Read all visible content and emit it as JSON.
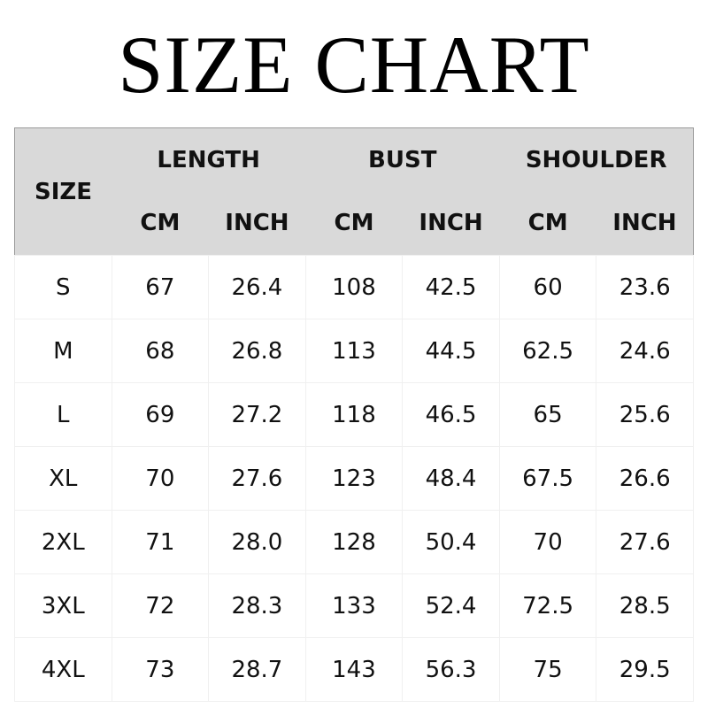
{
  "title": "SIZE CHART",
  "header": {
    "size": "SIZE",
    "groups": [
      "LENGTH",
      "BUST",
      "SHOULDER"
    ],
    "units": [
      "CM",
      "INCH",
      "CM",
      "INCH",
      "CM",
      "INCH"
    ]
  },
  "rows": [
    [
      "S",
      "67",
      "26.4",
      "108",
      "42.5",
      "60",
      "23.6"
    ],
    [
      "M",
      "68",
      "26.8",
      "113",
      "44.5",
      "62.5",
      "24.6"
    ],
    [
      "L",
      "69",
      "27.2",
      "118",
      "46.5",
      "65",
      "25.6"
    ],
    [
      "XL",
      "70",
      "27.6",
      "123",
      "48.4",
      "67.5",
      "26.6"
    ],
    [
      "2XL",
      "71",
      "28.0",
      "128",
      "50.4",
      "70",
      "27.6"
    ],
    [
      "3XL",
      "72",
      "28.3",
      "133",
      "52.4",
      "72.5",
      "28.5"
    ],
    [
      "4XL",
      "73",
      "28.7",
      "143",
      "56.3",
      "75",
      "29.5"
    ]
  ],
  "colors": {
    "header_bg": "#d9d9d9",
    "border": "#9a9a9a"
  }
}
